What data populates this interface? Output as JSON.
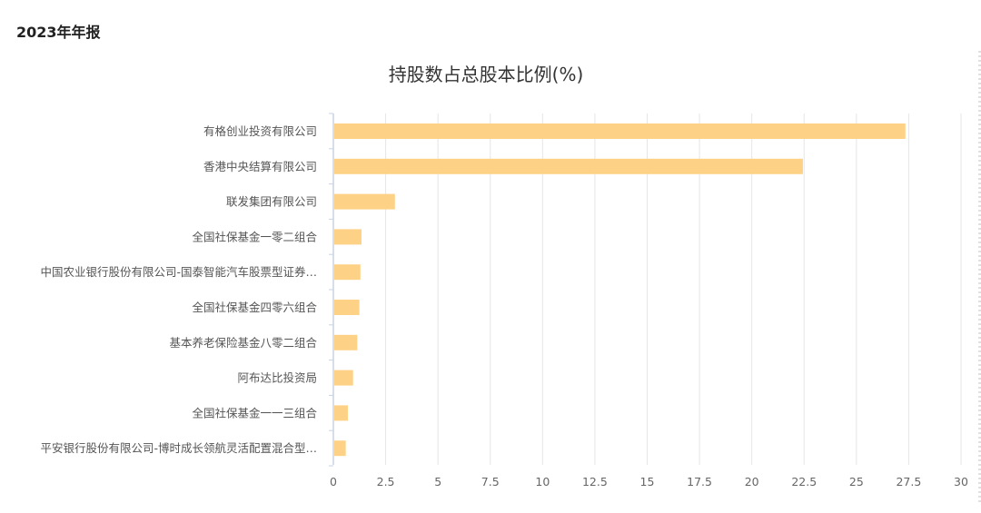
{
  "header": {
    "report_label": "2023年年报"
  },
  "colors": {
    "bar": "#fdd287",
    "grid": "#e6e6e6",
    "axis": "#c9d3e3",
    "label": "#555555",
    "tick": "#666666"
  },
  "chart_data": {
    "type": "bar",
    "orientation": "horizontal",
    "title": "持股数占总股本比例(%)",
    "xlabel": "",
    "ylabel": "",
    "xlim": [
      0,
      30
    ],
    "xticks": [
      "0",
      "2.5",
      "5",
      "7.5",
      "10",
      "12.5",
      "15",
      "17.5",
      "20",
      "22.5",
      "25",
      "27.5",
      "30"
    ],
    "grid": true,
    "legend": "none",
    "categories": [
      "有格创业投资有限公司",
      "香港中央结算有限公司",
      "联发集团有限公司",
      "全国社保基金一零二组合",
      "中国农业银行股份有限公司-国泰智能汽车股票型证券…",
      "全国社保基金四零六组合",
      "基本养老保险基金八零二组合",
      "阿布达比投资局",
      "全国社保基金一一三组合",
      "平安银行股份有限公司-博时成长领航灵活配置混合型…"
    ],
    "values": [
      27.3,
      22.4,
      2.9,
      1.3,
      1.25,
      1.2,
      1.1,
      0.9,
      0.65,
      0.55
    ]
  }
}
